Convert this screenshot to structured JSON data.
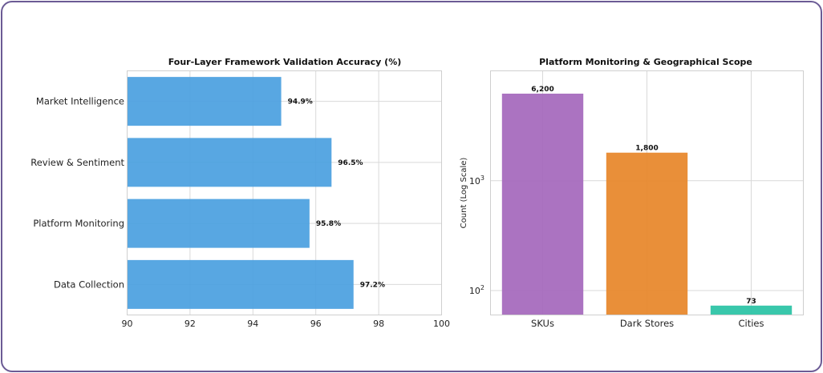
{
  "chart_data": [
    {
      "type": "bar",
      "orientation": "horizontal",
      "title": "Four-Layer Framework Validation Accuracy (%)",
      "categories": [
        "Market Intelligence",
        "Review & Sentiment",
        "Platform Monitoring",
        "Data Collection"
      ],
      "values": [
        94.9,
        96.5,
        95.8,
        97.2
      ],
      "value_labels": [
        "94.9%",
        "96.5%",
        "95.8%",
        "97.2%"
      ],
      "xlim": [
        90,
        100
      ],
      "xticks": [
        "90",
        "92",
        "94",
        "96",
        "98",
        "100"
      ],
      "xlabel": "",
      "ylabel": "",
      "grid": true,
      "color": "#4a9fe0"
    },
    {
      "type": "bar",
      "title": "Platform Monitoring & Geographical Scope",
      "categories": [
        "SKUs",
        "Dark Stores",
        "Cities"
      ],
      "values": [
        6200,
        1800,
        73
      ],
      "value_labels": [
        "6,200",
        "1,800",
        "73"
      ],
      "colors": [
        "#a66bbe",
        "#e8892e",
        "#2ec4a6"
      ],
      "ylabel": "Count (Log Scale)",
      "yscale": "log",
      "ylim": [
        60,
        10000
      ],
      "yticks": [
        {
          "value": 100,
          "base": "10",
          "exp": "2"
        },
        {
          "value": 1000,
          "base": "10",
          "exp": "3"
        }
      ],
      "xlabel": "",
      "grid": true
    }
  ]
}
